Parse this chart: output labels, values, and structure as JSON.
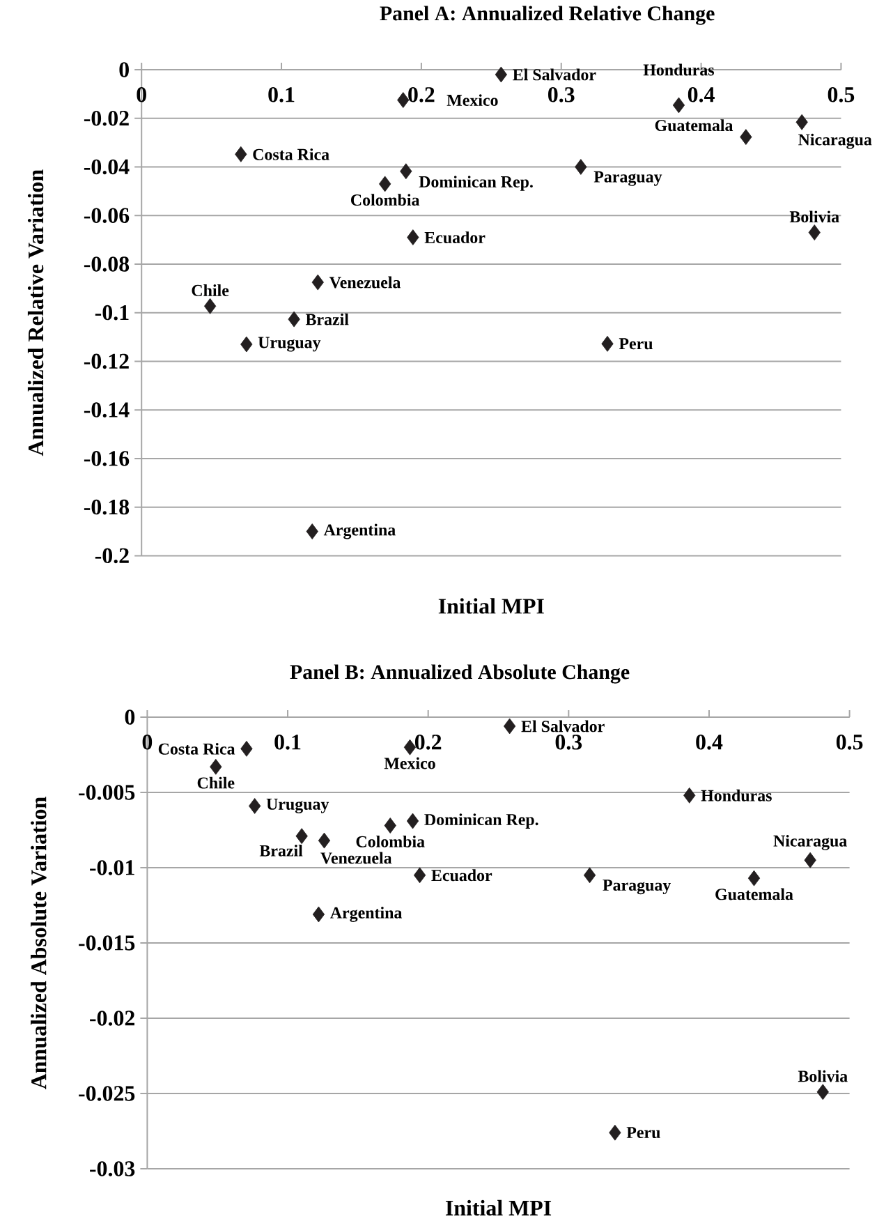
{
  "chart_data": [
    {
      "type": "scatter",
      "title": "Panel A: Annualized Relative Change",
      "xlabel": "Initial MPI",
      "ylabel": "Annualized Relative Variation",
      "color": "#231f20",
      "marker": "diamond",
      "grid": "y",
      "xlim": [
        0,
        0.5
      ],
      "ylim": [
        -0.2,
        0
      ],
      "xticks": [
        0,
        0.1,
        0.2,
        0.3,
        0.4,
        0.5
      ],
      "yticks": [
        0,
        -0.02,
        -0.04,
        -0.06,
        -0.08,
        -0.1,
        -0.12,
        -0.14,
        -0.16,
        -0.18,
        -0.2
      ],
      "x": [
        0.257,
        0.187,
        0.384,
        0.472,
        0.432,
        0.314,
        0.071,
        0.189,
        0.174,
        0.481,
        0.194,
        0.126,
        0.049,
        0.109,
        0.075,
        0.333,
        0.122
      ],
      "values": [
        -0.002,
        -0.0125,
        -0.0146,
        -0.0216,
        -0.0277,
        -0.04,
        -0.0348,
        -0.0418,
        -0.047,
        -0.067,
        -0.069,
        -0.0875,
        -0.0973,
        -0.1027,
        -0.113,
        -0.1128,
        -0.19
      ],
      "annotations": [
        {
          "text": "El Salvador",
          "x": 0.257,
          "y": -0.002
        },
        {
          "text": "Mexico",
          "x": 0.187,
          "y": -0.0125
        },
        {
          "text": "Honduras",
          "x": 0.384,
          "y": -0.0146
        },
        {
          "text": "Nicaragua",
          "x": 0.472,
          "y": -0.0216
        },
        {
          "text": "Guatemala",
          "x": 0.432,
          "y": -0.0277
        },
        {
          "text": "Paraguay",
          "x": 0.314,
          "y": -0.04
        },
        {
          "text": "Costa Rica",
          "x": 0.071,
          "y": -0.0348
        },
        {
          "text": "Dominican Rep.",
          "x": 0.189,
          "y": -0.0418
        },
        {
          "text": "Colombia",
          "x": 0.174,
          "y": -0.047
        },
        {
          "text": "Bolivia",
          "x": 0.481,
          "y": -0.067
        },
        {
          "text": "Ecuador",
          "x": 0.194,
          "y": -0.069
        },
        {
          "text": "Venezuela",
          "x": 0.126,
          "y": -0.0875
        },
        {
          "text": "Chile",
          "x": 0.049,
          "y": -0.0973
        },
        {
          "text": "Brazil",
          "x": 0.109,
          "y": -0.1027
        },
        {
          "text": "Uruguay",
          "x": 0.075,
          "y": -0.113
        },
        {
          "text": "Peru",
          "x": 0.333,
          "y": -0.1128
        },
        {
          "text": "Argentina",
          "x": 0.122,
          "y": -0.19
        }
      ]
    },
    {
      "type": "scatter",
      "title": "Panel B: Annualized Absolute Change",
      "xlabel": "Initial MPI",
      "ylabel": "Annualized Absolute Variation",
      "color": "#231f20",
      "marker": "diamond",
      "grid": "y",
      "xlim": [
        0,
        0.5
      ],
      "ylim": [
        -0.03,
        0
      ],
      "xticks": [
        0,
        0.1,
        0.2,
        0.3,
        0.4,
        0.5
      ],
      "yticks": [
        0,
        -0.005,
        -0.01,
        -0.015,
        -0.02,
        -0.025,
        -0.03
      ],
      "x": [
        0.258,
        0.0707,
        0.187,
        0.0488,
        0.386,
        0.0765,
        0.173,
        0.189,
        0.11,
        0.126,
        0.472,
        0.194,
        0.315,
        0.432,
        0.122,
        0.481,
        0.333
      ],
      "values": [
        -0.0006,
        -0.0021,
        -0.002,
        -0.0033,
        -0.0052,
        -0.0059,
        -0.0072,
        -0.0069,
        -0.0079,
        -0.0082,
        -0.0095,
        -0.0105,
        -0.0105,
        -0.0107,
        -0.0131,
        -0.0249,
        -0.0276
      ],
      "annotations": [
        {
          "text": "El Salvador",
          "x": 0.258,
          "y": -0.0006
        },
        {
          "text": "Costa Rica",
          "x": 0.0707,
          "y": -0.0021
        },
        {
          "text": "Mexico",
          "x": 0.187,
          "y": -0.002
        },
        {
          "text": "Chile",
          "x": 0.0488,
          "y": -0.0033
        },
        {
          "text": "Honduras",
          "x": 0.386,
          "y": -0.0052
        },
        {
          "text": "Uruguay",
          "x": 0.0765,
          "y": -0.0059
        },
        {
          "text": "Colombia",
          "x": 0.173,
          "y": -0.0072
        },
        {
          "text": "Dominican Rep.",
          "x": 0.189,
          "y": -0.0069
        },
        {
          "text": "Brazil",
          "x": 0.11,
          "y": -0.0079
        },
        {
          "text": "Venezuela",
          "x": 0.126,
          "y": -0.0082
        },
        {
          "text": "Nicaragua",
          "x": 0.472,
          "y": -0.0095
        },
        {
          "text": "Ecuador",
          "x": 0.194,
          "y": -0.0105
        },
        {
          "text": "Paraguay",
          "x": 0.315,
          "y": -0.0105
        },
        {
          "text": "Guatemala",
          "x": 0.432,
          "y": -0.0107
        },
        {
          "text": "Argentina",
          "x": 0.122,
          "y": -0.0131
        },
        {
          "text": "Bolivia",
          "x": 0.481,
          "y": -0.0249
        },
        {
          "text": "Peru",
          "x": 0.333,
          "y": -0.0276
        }
      ]
    }
  ]
}
